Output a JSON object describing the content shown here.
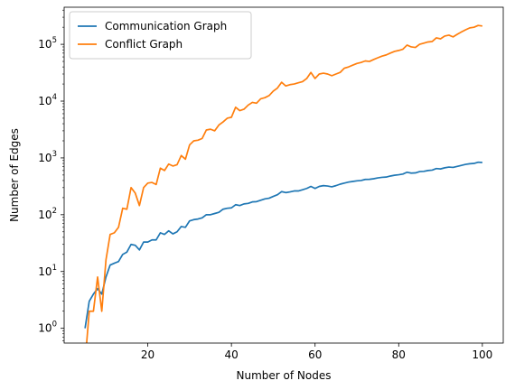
{
  "chart_data": {
    "type": "line",
    "xlabel": "Number of Nodes",
    "ylabel": "Number of Edges",
    "xlim": [
      0,
      105
    ],
    "ylim": [
      0.55,
      450000
    ],
    "y_scale": "log",
    "grid": false,
    "legend_position": "top-left",
    "x_ticks": [
      20,
      40,
      60,
      80,
      100
    ],
    "y_ticks": [
      {
        "value": 1,
        "base": "10",
        "exp": "0"
      },
      {
        "value": 10,
        "base": "10",
        "exp": "1"
      },
      {
        "value": 100,
        "base": "10",
        "exp": "2"
      },
      {
        "value": 1000,
        "base": "10",
        "exp": "3"
      },
      {
        "value": 10000,
        "base": "10",
        "exp": "4"
      },
      {
        "value": 100000,
        "base": "10",
        "exp": "5"
      }
    ],
    "series": [
      {
        "name": "Communication Graph",
        "color": "#1f77b4",
        "points": [
          [
            5,
            1
          ],
          [
            6,
            3
          ],
          [
            7,
            4
          ],
          [
            8,
            5
          ],
          [
            9,
            4
          ],
          [
            10,
            8
          ],
          [
            11,
            13
          ],
          [
            12,
            14
          ],
          [
            13,
            15
          ],
          [
            14,
            20
          ],
          [
            15,
            22
          ],
          [
            16,
            30
          ],
          [
            17,
            29
          ],
          [
            18,
            24
          ],
          [
            19,
            33
          ],
          [
            20,
            33
          ],
          [
            21,
            36
          ],
          [
            22,
            36
          ],
          [
            23,
            48
          ],
          [
            24,
            45
          ],
          [
            25,
            52
          ],
          [
            26,
            46
          ],
          [
            27,
            50
          ],
          [
            28,
            62
          ],
          [
            29,
            60
          ],
          [
            30,
            78
          ],
          [
            31,
            82
          ],
          [
            32,
            84
          ],
          [
            33,
            88
          ],
          [
            34,
            100
          ],
          [
            35,
            100
          ],
          [
            36,
            105
          ],
          [
            37,
            110
          ],
          [
            38,
            125
          ],
          [
            39,
            130
          ],
          [
            40,
            132
          ],
          [
            41,
            150
          ],
          [
            42,
            145
          ],
          [
            43,
            155
          ],
          [
            44,
            158
          ],
          [
            45,
            168
          ],
          [
            46,
            170
          ],
          [
            47,
            180
          ],
          [
            48,
            190
          ],
          [
            49,
            195
          ],
          [
            50,
            210
          ],
          [
            51,
            225
          ],
          [
            52,
            255
          ],
          [
            53,
            245
          ],
          [
            54,
            252
          ],
          [
            55,
            262
          ],
          [
            56,
            262
          ],
          [
            57,
            275
          ],
          [
            58,
            290
          ],
          [
            59,
            315
          ],
          [
            60,
            290
          ],
          [
            61,
            315
          ],
          [
            62,
            325
          ],
          [
            63,
            320
          ],
          [
            64,
            310
          ],
          [
            65,
            325
          ],
          [
            66,
            345
          ],
          [
            67,
            360
          ],
          [
            68,
            375
          ],
          [
            69,
            385
          ],
          [
            70,
            395
          ],
          [
            71,
            400
          ],
          [
            72,
            418
          ],
          [
            73,
            420
          ],
          [
            74,
            430
          ],
          [
            75,
            445
          ],
          [
            76,
            455
          ],
          [
            77,
            460
          ],
          [
            78,
            480
          ],
          [
            79,
            495
          ],
          [
            80,
            505
          ],
          [
            81,
            520
          ],
          [
            82,
            560
          ],
          [
            83,
            540
          ],
          [
            84,
            545
          ],
          [
            85,
            575
          ],
          [
            86,
            580
          ],
          [
            87,
            600
          ],
          [
            88,
            610
          ],
          [
            89,
            650
          ],
          [
            90,
            640
          ],
          [
            91,
            670
          ],
          [
            92,
            690
          ],
          [
            93,
            680
          ],
          [
            94,
            710
          ],
          [
            95,
            740
          ],
          [
            96,
            770
          ],
          [
            97,
            790
          ],
          [
            98,
            800
          ],
          [
            99,
            840
          ],
          [
            100,
            830
          ]
        ]
      },
      {
        "name": "Conflict Graph",
        "color": "#ff7f0e",
        "points": [
          [
            5,
            0.25
          ],
          [
            6,
            2
          ],
          [
            7,
            2
          ],
          [
            8,
            8
          ],
          [
            9,
            2
          ],
          [
            10,
            16
          ],
          [
            11,
            45
          ],
          [
            12,
            48
          ],
          [
            13,
            60
          ],
          [
            14,
            130
          ],
          [
            15,
            125
          ],
          [
            16,
            300
          ],
          [
            17,
            240
          ],
          [
            18,
            145
          ],
          [
            19,
            300
          ],
          [
            20,
            360
          ],
          [
            21,
            370
          ],
          [
            22,
            340
          ],
          [
            23,
            660
          ],
          [
            24,
            600
          ],
          [
            25,
            780
          ],
          [
            26,
            720
          ],
          [
            27,
            760
          ],
          [
            28,
            1100
          ],
          [
            29,
            950
          ],
          [
            30,
            1700
          ],
          [
            31,
            2000
          ],
          [
            32,
            2050
          ],
          [
            33,
            2200
          ],
          [
            34,
            3100
          ],
          [
            35,
            3200
          ],
          [
            36,
            3000
          ],
          [
            37,
            3800
          ],
          [
            38,
            4300
          ],
          [
            39,
            5000
          ],
          [
            40,
            5200
          ],
          [
            41,
            7800
          ],
          [
            42,
            6800
          ],
          [
            43,
            7200
          ],
          [
            44,
            8500
          ],
          [
            45,
            9500
          ],
          [
            46,
            9200
          ],
          [
            47,
            11000
          ],
          [
            48,
            11500
          ],
          [
            49,
            12500
          ],
          [
            50,
            15000
          ],
          [
            51,
            17000
          ],
          [
            52,
            21500
          ],
          [
            53,
            18500
          ],
          [
            54,
            19500
          ],
          [
            55,
            20000
          ],
          [
            56,
            21000
          ],
          [
            57,
            22000
          ],
          [
            58,
            25000
          ],
          [
            59,
            32000
          ],
          [
            60,
            25000
          ],
          [
            61,
            30000
          ],
          [
            62,
            31000
          ],
          [
            63,
            30000
          ],
          [
            64,
            28000
          ],
          [
            65,
            30000
          ],
          [
            66,
            32000
          ],
          [
            67,
            38000
          ],
          [
            68,
            40000
          ],
          [
            69,
            43000
          ],
          [
            70,
            46000
          ],
          [
            71,
            48000
          ],
          [
            72,
            51000
          ],
          [
            73,
            50000
          ],
          [
            74,
            54000
          ],
          [
            75,
            58000
          ],
          [
            76,
            62000
          ],
          [
            77,
            65000
          ],
          [
            78,
            70000
          ],
          [
            79,
            75000
          ],
          [
            80,
            78000
          ],
          [
            81,
            82000
          ],
          [
            82,
            97000
          ],
          [
            83,
            90000
          ],
          [
            84,
            88000
          ],
          [
            85,
            100000
          ],
          [
            86,
            105000
          ],
          [
            87,
            110000
          ],
          [
            88,
            112000
          ],
          [
            89,
            130000
          ],
          [
            90,
            125000
          ],
          [
            91,
            140000
          ],
          [
            92,
            145000
          ],
          [
            93,
            135000
          ],
          [
            94,
            150000
          ],
          [
            95,
            165000
          ],
          [
            96,
            180000
          ],
          [
            97,
            195000
          ],
          [
            98,
            200000
          ],
          [
            99,
            215000
          ],
          [
            100,
            210000
          ]
        ]
      }
    ]
  }
}
